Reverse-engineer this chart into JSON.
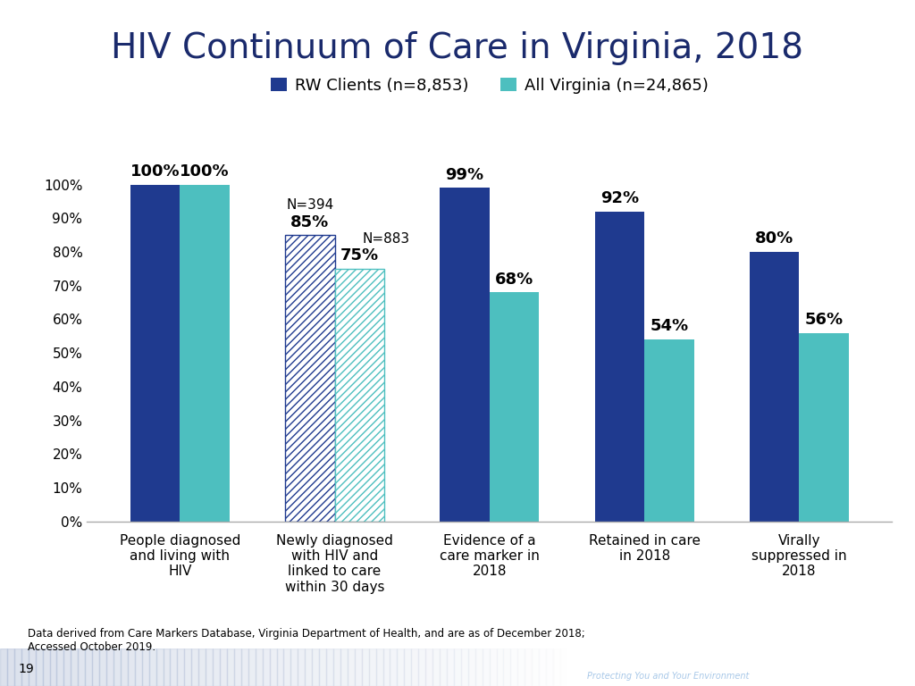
{
  "title": "HIV Continuum of Care in Virginia, 2018",
  "title_color": "#1a2a6c",
  "title_fontsize": 28,
  "legend_labels": [
    "RW Clients (n=8,853)",
    "All Virginia (n=24,865)"
  ],
  "rw_color": "#1f3a8f",
  "va_color": "#4dbfbf",
  "categories": [
    "People diagnosed\nand living with\nHIV",
    "Newly diagnosed\nwith HIV and\nlinked to care\nwithin 30 days",
    "Evidence of a\ncare marker in\n2018",
    "Retained in care\nin 2018",
    "Virally\nsuppressed in\n2018"
  ],
  "rw_values": [
    100,
    85,
    99,
    92,
    80
  ],
  "va_values": [
    100,
    75,
    68,
    54,
    56
  ],
  "rw_labels": [
    "100%",
    "85%",
    "99%",
    "92%",
    "80%"
  ],
  "va_labels": [
    "100%",
    "75%",
    "68%",
    "54%",
    "56%"
  ],
  "hatched_index": 1,
  "n_label_rw": "N=394",
  "n_label_va": "N=883",
  "ylim": [
    0,
    110
  ],
  "yticks": [
    0,
    10,
    20,
    30,
    40,
    50,
    60,
    70,
    80,
    90,
    100
  ],
  "ytick_labels": [
    "0%",
    "10%",
    "20%",
    "30%",
    "40%",
    "50%",
    "60%",
    "70%",
    "80%",
    "90%",
    "100%"
  ],
  "footer_text": "Data derived from Care Markers Database, Virginia Department of Health, and are as of December 2018;\nAccessed October 2019.",
  "page_number": "19",
  "vdh_bg_color": "#2d3a7a",
  "vdh_text_color": "#ffffff",
  "vdh_subtitle_color": "#a8c8e8",
  "background_color": "#ffffff"
}
